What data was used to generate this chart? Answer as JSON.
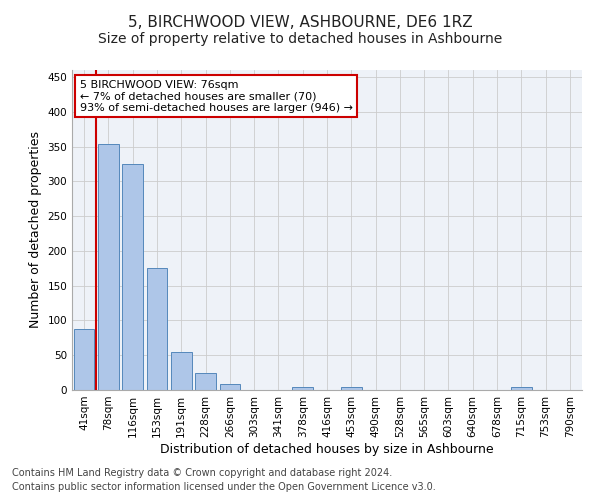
{
  "title": "5, BIRCHWOOD VIEW, ASHBOURNE, DE6 1RZ",
  "subtitle": "Size of property relative to detached houses in Ashbourne",
  "xlabel": "Distribution of detached houses by size in Ashbourne",
  "ylabel": "Number of detached properties",
  "bar_labels": [
    "41sqm",
    "78sqm",
    "116sqm",
    "153sqm",
    "191sqm",
    "228sqm",
    "266sqm",
    "303sqm",
    "341sqm",
    "378sqm",
    "416sqm",
    "453sqm",
    "490sqm",
    "528sqm",
    "565sqm",
    "603sqm",
    "640sqm",
    "678sqm",
    "715sqm",
    "753sqm",
    "790sqm"
  ],
  "bar_values": [
    88,
    354,
    325,
    175,
    54,
    25,
    8,
    0,
    0,
    4,
    0,
    5,
    0,
    0,
    0,
    0,
    0,
    0,
    4,
    0,
    0
  ],
  "bar_color": "#aec6e8",
  "bar_edge_color": "#5588bb",
  "marker_color": "#cc0000",
  "annotation_lines": [
    "5 BIRCHWOOD VIEW: 76sqm",
    "← 7% of detached houses are smaller (70)",
    "93% of semi-detached houses are larger (946) →"
  ],
  "annotation_box_color": "#ffffff",
  "annotation_box_edge": "#cc0000",
  "ylim": [
    0,
    460
  ],
  "yticks": [
    0,
    50,
    100,
    150,
    200,
    250,
    300,
    350,
    400,
    450
  ],
  "footnote1": "Contains HM Land Registry data © Crown copyright and database right 2024.",
  "footnote2": "Contains public sector information licensed under the Open Government Licence v3.0.",
  "bg_color": "#eef2f8",
  "grid_color": "#cccccc",
  "title_fontsize": 11,
  "subtitle_fontsize": 10,
  "axis_label_fontsize": 9,
  "tick_fontsize": 7.5,
  "footnote_fontsize": 7,
  "annotation_fontsize": 8
}
